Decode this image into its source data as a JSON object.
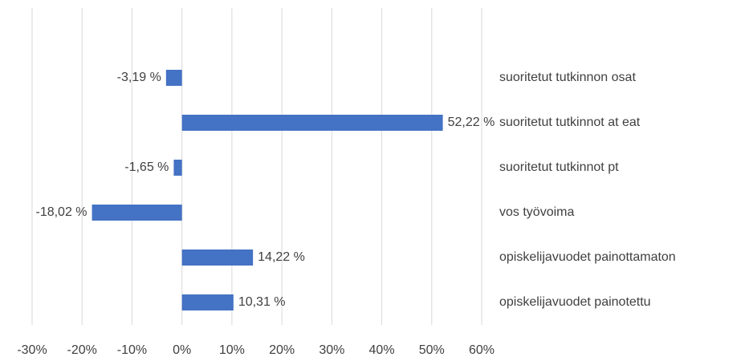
{
  "chart_data": {
    "type": "hbar",
    "categories": [
      "suoritetut tutkinnon osat",
      "suoritetut tutkinnot at eat",
      "suoritetut tutkinnot pt",
      "vos työvoima",
      "opiskelijavuodet painottamaton",
      "opiskelijavuodet painotettu"
    ],
    "values": [
      -3.19,
      52.22,
      -1.65,
      -18.02,
      14.22,
      10.31
    ],
    "value_labels": [
      "-3,19 %",
      "52,22 %",
      "-1,65 %",
      "-18,02 %",
      "14,22 %",
      "10,31 %"
    ],
    "color": "#4472c4",
    "xlim": [
      -30,
      60
    ],
    "xticks": [
      {
        "value": -30,
        "label": "-30%"
      },
      {
        "value": -20,
        "label": "-20%"
      },
      {
        "value": -10,
        "label": "-10%"
      },
      {
        "value": 0,
        "label": "0%"
      },
      {
        "value": 10,
        "label": "10%"
      },
      {
        "value": 20,
        "label": "20%"
      },
      {
        "value": 30,
        "label": "30%"
      },
      {
        "value": 40,
        "label": "40%"
      },
      {
        "value": 50,
        "label": "50%"
      },
      {
        "value": 60,
        "label": "60%"
      }
    ],
    "grid": true
  }
}
